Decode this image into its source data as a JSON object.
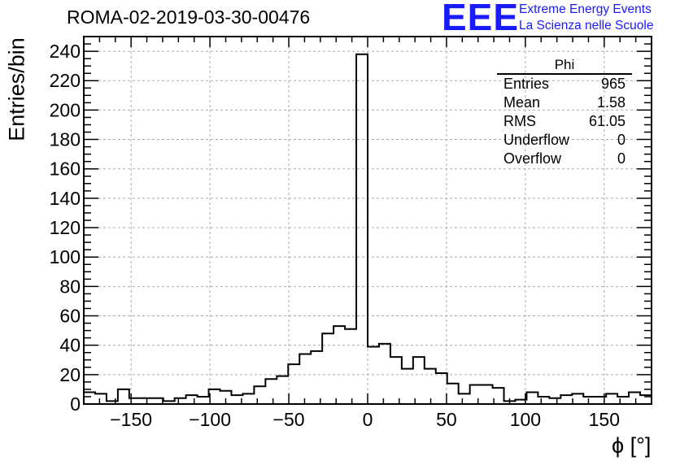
{
  "header": {
    "title": "ROMA-02-2019-03-30-00476",
    "logo": "EEE",
    "logo_line1": "Extreme Energy Events",
    "logo_line2": "La Scienza nelle Scuole"
  },
  "stats_box": {
    "title": "Phi",
    "rows": [
      {
        "label": "Entries",
        "value": "965"
      },
      {
        "label": "Mean",
        "value": "1.58"
      },
      {
        "label": "RMS",
        "value": "61.05"
      },
      {
        "label": "Underflow",
        "value": "0"
      },
      {
        "label": "Overflow",
        "value": "0"
      }
    ]
  },
  "chart_data": {
    "type": "histogram",
    "title": "ROMA-02-2019-03-30-00476",
    "xlabel": "ϕ [°]",
    "ylabel": "Entries/bin",
    "xlim": [
      -180,
      180
    ],
    "ylim": [
      0,
      250
    ],
    "bin_width": 7.2,
    "grid": true,
    "x_ticks": [
      -150,
      -100,
      -50,
      0,
      50,
      100,
      150
    ],
    "y_ticks": [
      0,
      20,
      40,
      60,
      80,
      100,
      120,
      140,
      160,
      180,
      200,
      220,
      240
    ],
    "values": [
      8,
      7,
      2,
      10,
      4,
      4,
      4,
      2,
      4,
      6,
      5,
      10,
      9,
      6,
      7,
      12,
      17,
      19,
      27,
      34,
      36,
      48,
      53,
      51,
      238,
      39,
      41,
      32,
      24,
      32,
      24,
      21,
      14,
      7,
      13,
      13,
      11,
      2,
      3,
      8,
      5,
      4,
      6,
      7,
      5,
      5,
      7,
      5,
      8,
      6
    ]
  }
}
